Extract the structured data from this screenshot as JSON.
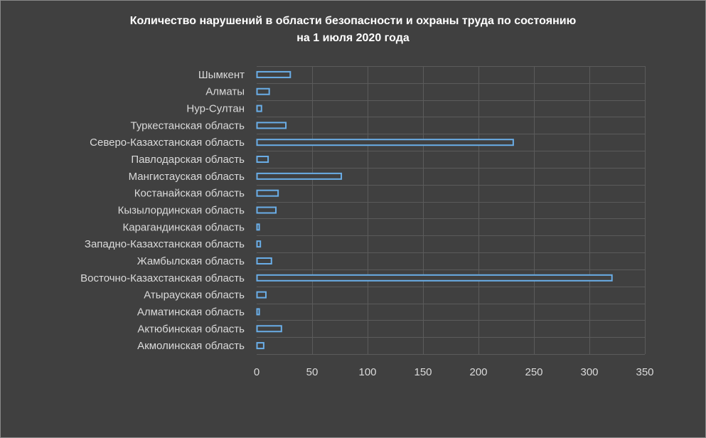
{
  "chart_data": {
    "type": "bar",
    "orientation": "horizontal",
    "title_line1": "Количество нарушений в области безопасности и охраны труда по состоянию",
    "title_line2": "на 1 июля 2020 года",
    "categories": [
      "Шымкент",
      "Алматы",
      "Нур-Султан",
      "Туркестанская область",
      "Северо-Казахстанская область",
      "Павлодарская область",
      "Мангистауская область",
      "Костанайская область",
      "Кызылординская область",
      "Карагандинская область",
      "Западно-Казахстанская область",
      "Жамбылская область",
      "Восточно-Казахстанская область",
      "Атырауская область",
      "Алматинская область",
      "Актюбинская область",
      "Акмолинская область"
    ],
    "values": [
      30,
      11,
      4,
      26,
      231,
      10,
      76,
      19,
      17,
      2,
      3,
      13,
      320,
      8,
      2,
      22,
      6
    ],
    "xlim": [
      0,
      350
    ],
    "xticks": [
      "0",
      "50",
      "100",
      "150",
      "200",
      "250",
      "300",
      "350"
    ],
    "grid": true,
    "colors": {
      "background": "#404040",
      "bar_outline": "#6aaee8",
      "text": "#dadada",
      "title": "#ffffff",
      "grid": "#5b5b5b"
    }
  }
}
